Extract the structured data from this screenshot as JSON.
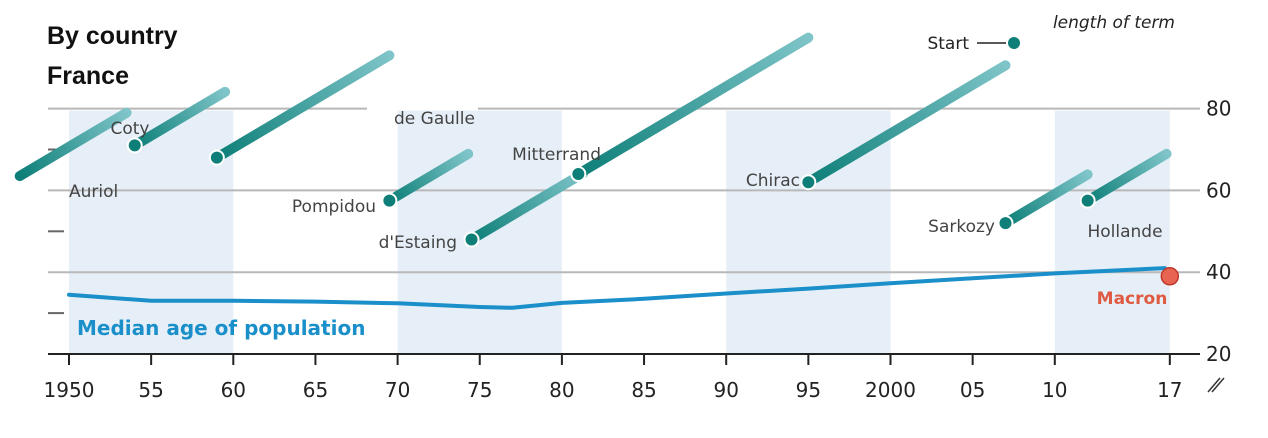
{
  "header": {
    "title": "By country",
    "subtitle": "France"
  },
  "legend": {
    "start_label": "Start",
    "length_label": "length of term"
  },
  "chart_data": {
    "type": "line",
    "xlim": [
      1950,
      2017
    ],
    "ylim": [
      20,
      80
    ],
    "x_ticks": [
      {
        "value": 1950,
        "label": "1950"
      },
      {
        "value": 1955,
        "label": "55"
      },
      {
        "value": 1960,
        "label": "60"
      },
      {
        "value": 1965,
        "label": "65"
      },
      {
        "value": 1970,
        "label": "70"
      },
      {
        "value": 1975,
        "label": "75"
      },
      {
        "value": 1980,
        "label": "80"
      },
      {
        "value": 1985,
        "label": "85"
      },
      {
        "value": 1990,
        "label": "90"
      },
      {
        "value": 1995,
        "label": "95"
      },
      {
        "value": 2000,
        "label": "2000"
      },
      {
        "value": 2005,
        "label": "05"
      },
      {
        "value": 2010,
        "label": "10"
      },
      {
        "value": 2017,
        "label": "17"
      }
    ],
    "y_ticks": [
      {
        "value": 80,
        "label": "80"
      },
      {
        "value": 60,
        "label": "60"
      },
      {
        "value": 40,
        "label": "40"
      },
      {
        "value": 20,
        "label": "20"
      }
    ],
    "shaded_decades": [
      [
        1950,
        1960
      ],
      [
        1970,
        1980
      ],
      [
        1990,
        2000
      ],
      [
        2010,
        2017
      ]
    ],
    "median_age": {
      "label": "Median age of population",
      "color": "#1a8fc9",
      "points": [
        [
          1950,
          34.5
        ],
        [
          1955,
          33.0
        ],
        [
          1960,
          33.0
        ],
        [
          1965,
          32.8
        ],
        [
          1970,
          32.4
        ],
        [
          1975,
          31.5
        ],
        [
          1977,
          31.3
        ],
        [
          1980,
          32.5
        ],
        [
          1985,
          33.5
        ],
        [
          1990,
          34.8
        ],
        [
          1995,
          36.0
        ],
        [
          2000,
          37.3
        ],
        [
          2005,
          38.5
        ],
        [
          2010,
          39.7
        ],
        [
          2016.7,
          41.0
        ]
      ]
    },
    "presidents": [
      {
        "name": "Auriol",
        "start": 1947.0,
        "end": 1953.5,
        "age": 63.5,
        "marker": false
      },
      {
        "name": "Coty",
        "start": 1954.0,
        "end": 1959.5,
        "age": 71.0,
        "marker": true
      },
      {
        "name": "de Gaulle",
        "start": 1959.0,
        "end": 1969.5,
        "age": 68.0,
        "marker": true
      },
      {
        "name": "Pompidou",
        "start": 1969.5,
        "end": 1974.3,
        "age": 57.5,
        "marker": true
      },
      {
        "name": "d'Estaing",
        "start": 1974.5,
        "end": 1981.3,
        "age": 48.0,
        "marker": true
      },
      {
        "name": "Mitterrand",
        "start": 1981.0,
        "end": 1995.0,
        "age": 64.0,
        "marker": true
      },
      {
        "name": "Chirac",
        "start": 1995.0,
        "end": 2007.0,
        "age": 62.0,
        "marker": true
      },
      {
        "name": "Sarkozy",
        "start": 2007.0,
        "end": 2012.0,
        "age": 52.0,
        "marker": true
      },
      {
        "name": "Hollande",
        "start": 2012.0,
        "end": 2016.8,
        "age": 57.5,
        "marker": true
      },
      {
        "name": "Macron",
        "start": 2017.0,
        "end": 2017.0,
        "age": 39.0,
        "marker": true,
        "highlight": true
      }
    ],
    "colors": {
      "term_dark": "#0d7f78",
      "term_light": "#7ec4c8",
      "shade": "#e6eff7",
      "grid": "#b8b8b8",
      "macron": "#e86452",
      "macron_label": "#e05a42"
    }
  }
}
